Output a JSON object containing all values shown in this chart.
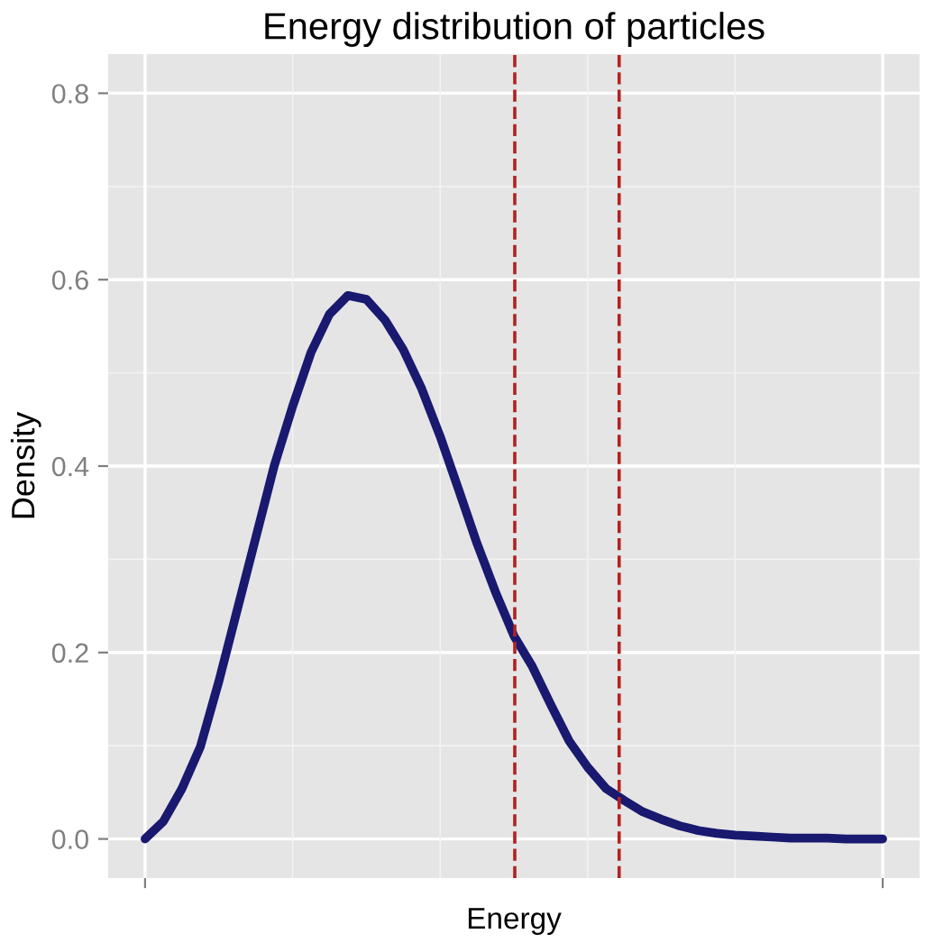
{
  "chart_data": {
    "type": "line",
    "title": "Energy distribution of particles",
    "xlabel": "Energy",
    "ylabel": "Density",
    "categories": [
      null,
      null,
      null,
      null,
      null,
      null,
      null,
      null,
      null,
      null,
      null,
      null,
      null,
      null,
      null,
      null,
      null,
      null,
      null,
      null,
      null,
      null,
      null,
      null,
      null,
      null,
      null,
      null,
      null,
      null,
      null,
      null,
      null,
      null,
      null,
      null,
      null,
      null,
      null,
      null,
      null
    ],
    "series": [
      {
        "color": "#191970",
        "values": [
          0,
          0.019,
          0.054,
          0.099,
          0.169,
          0.246,
          0.323,
          0.4,
          0.464,
          0.522,
          0.563,
          0.583,
          0.579,
          0.557,
          0.525,
          0.483,
          0.432,
          0.375,
          0.317,
          0.265,
          0.218,
          0.185,
          0.144,
          0.105,
          0.077,
          0.054,
          0.041,
          0.029,
          0.021,
          0.014,
          0.009,
          0.006,
          0.004,
          0.003,
          0.002,
          0.001,
          0.001,
          0.001,
          0,
          0,
          0
        ]
      }
    ],
    "ylim": [
      -0.042,
      0.842
    ],
    "yticks": [
      {
        "value": 0,
        "label": "0.0"
      },
      {
        "value": 0.2,
        "label": "0.2"
      },
      {
        "value": 0.4,
        "label": "0.4"
      },
      {
        "value": 0.6,
        "label": "0.6"
      },
      {
        "value": 0.8,
        "label": "0.8"
      }
    ],
    "grid": true,
    "marker": "none",
    "line_style": "solid"
  }
}
